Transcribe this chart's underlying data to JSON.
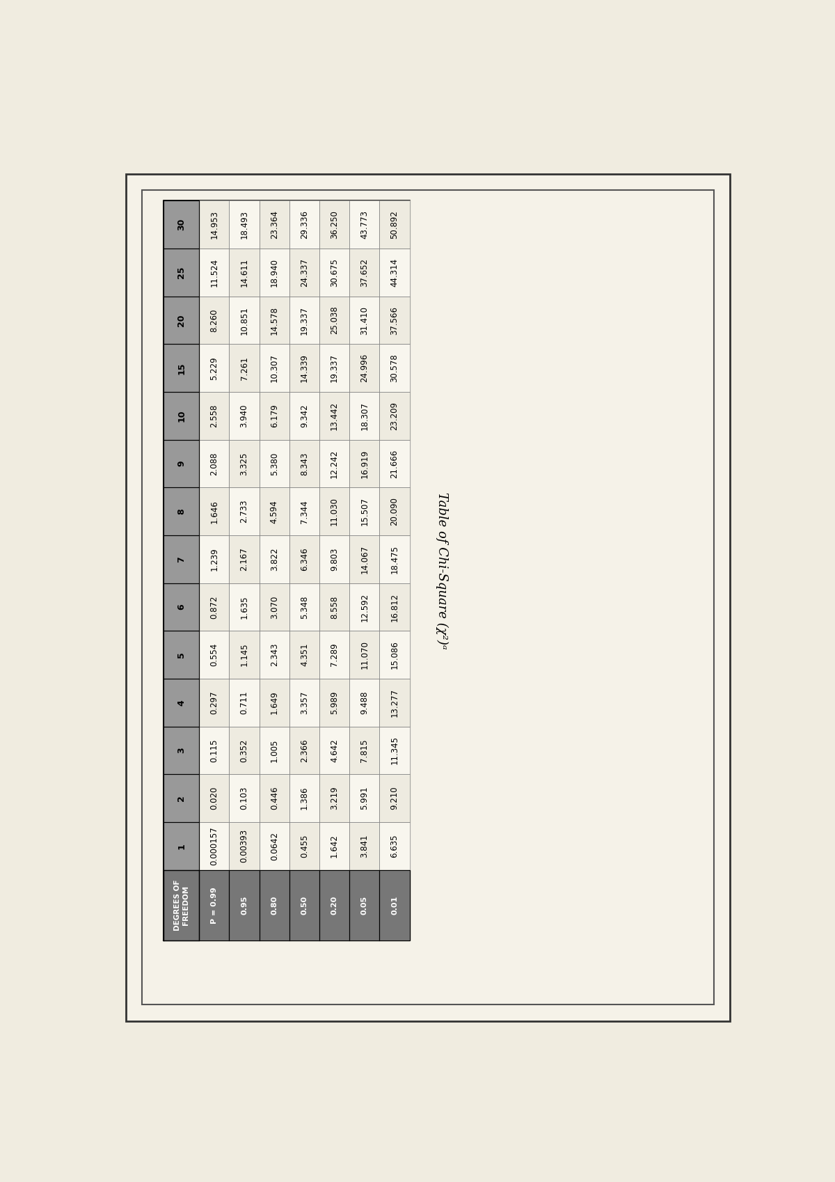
{
  "title": "Table of Chi-Square (χ²)ᵃ",
  "p_values": [
    "P = 0.99",
    "0.95",
    "0.80",
    "0.50",
    "0.20",
    "0.05",
    "0.01"
  ],
  "df_values": [
    "1",
    "2",
    "3",
    "4",
    "5",
    "6",
    "7",
    "8",
    "9",
    "10",
    "15",
    "20",
    "25",
    "30"
  ],
  "rows": [
    [
      "0.000157",
      "0.020",
      "0.115",
      "0.297",
      "0.554",
      "0.872",
      "1.239",
      "1.646",
      "2.088",
      "2.558",
      "5.229",
      "8.260",
      "11.524",
      "14.953"
    ],
    [
      "0.00393",
      "0.103",
      "0.352",
      "0.711",
      "1.145",
      "1.635",
      "2.167",
      "2.733",
      "3.325",
      "3.940",
      "7.261",
      "10.851",
      "14.611",
      "18.493"
    ],
    [
      "0.0642",
      "0.446",
      "1.005",
      "1.649",
      "2.343",
      "3.070",
      "3.822",
      "4.594",
      "5.380",
      "6.179",
      "10.307",
      "14.578",
      "18.940",
      "23.364"
    ],
    [
      "0.455",
      "1.386",
      "2.366",
      "3.357",
      "4.351",
      "5.348",
      "6.346",
      "7.344",
      "8.343",
      "9.342",
      "14.339",
      "19.337",
      "24.337",
      "29.336"
    ],
    [
      "1.642",
      "3.219",
      "4.642",
      "5.989",
      "7.289",
      "8.558",
      "9.803",
      "11.030",
      "12.242",
      "13.442",
      "19.337",
      "25.038",
      "30.675",
      "36.250"
    ],
    [
      "3.841",
      "5.991",
      "7.815",
      "9.488",
      "11.070",
      "12.592",
      "14.067",
      "15.507",
      "16.919",
      "18.307",
      "24.996",
      "31.410",
      "37.652",
      "43.773"
    ],
    [
      "6.635",
      "9.210",
      "11.345",
      "13.277",
      "15.086",
      "16.812",
      "18.475",
      "20.090",
      "21.666",
      "23.209",
      "30.578",
      "37.566",
      "44.314",
      "50.892"
    ]
  ],
  "bg_color": "#f0ece0",
  "page_bg": "#e8e4d8",
  "header_bg": "#888888",
  "table_bg": "#f5f2e8",
  "font_size": 10,
  "title_font_size": 13
}
